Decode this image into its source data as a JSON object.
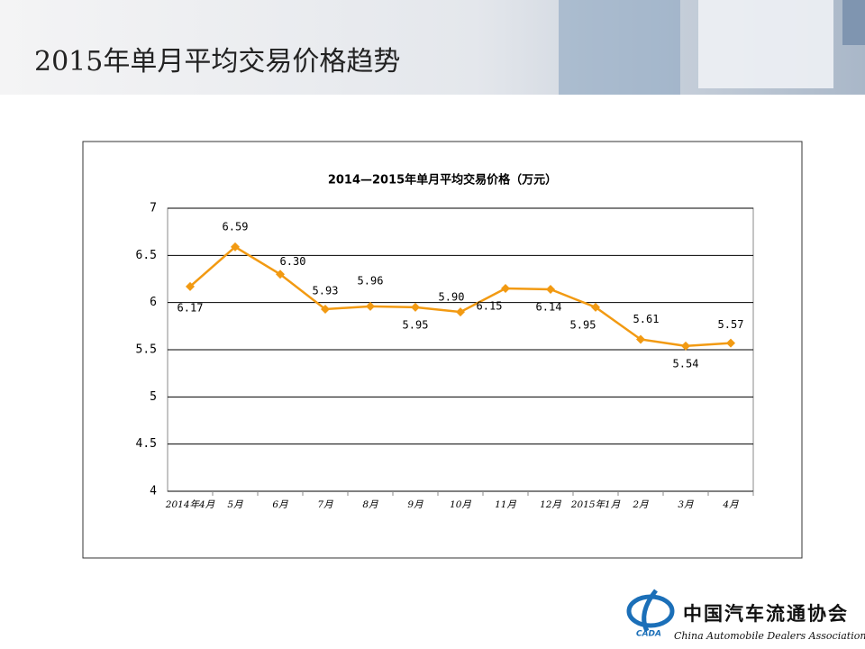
{
  "slide": {
    "title": "2015年单月平均交易价格趋势"
  },
  "chart_data": {
    "type": "line",
    "title": "2014—2015年单月平均交易价格（万元）",
    "categories": [
      "2014年4月",
      "5月",
      "6月",
      "7月",
      "8月",
      "9月",
      "10月",
      "11月",
      "12月",
      "2015年1月",
      "2月",
      "3月",
      "4月"
    ],
    "series": [
      {
        "color": "#f29a12",
        "values": [
          6.17,
          6.59,
          6.3,
          5.93,
          5.96,
          5.95,
          5.9,
          6.15,
          6.14,
          5.95,
          5.61,
          5.54,
          5.57
        ],
        "value_labels": [
          "6.17",
          "6.59",
          "6.30",
          "5.93",
          "5.96",
          "5.95",
          "5.90",
          "6.15",
          "6.14",
          "5.95",
          "5.61",
          "5.54",
          "5.57"
        ]
      }
    ],
    "ylim": [
      4,
      7
    ],
    "yticks": [
      4,
      4.5,
      5,
      5.5,
      6,
      6.5,
      7
    ],
    "grid": true
  },
  "logo": {
    "mark": "CADA",
    "name": "中国汽车流通协会",
    "name_en": "China Automobile Dealers Association"
  }
}
